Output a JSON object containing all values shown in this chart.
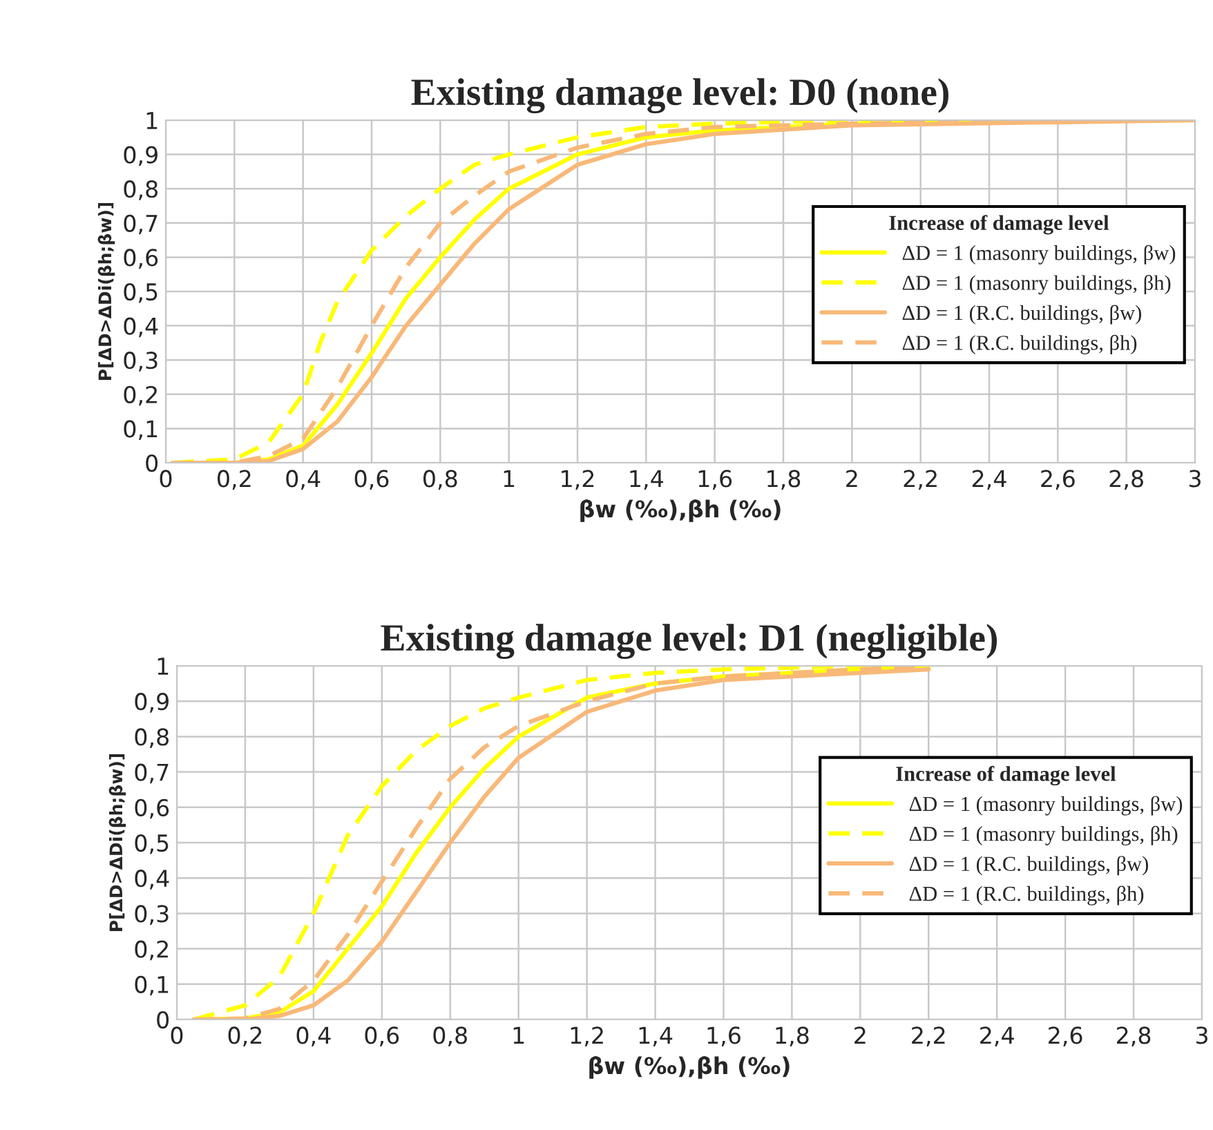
{
  "chart_data": [
    {
      "type": "line",
      "title": "Existing damage level: D0 (none)",
      "xlabel": "βw (‰),βh (‰)",
      "ylabel": "P[ΔD>ΔDi(βh;βw)]",
      "legend_title": "Increase of damage level",
      "legend": "right",
      "grid": true,
      "marker": "none",
      "xlim": [
        0,
        3
      ],
      "ylim": [
        0,
        1
      ],
      "xticks": [
        0,
        {
          "value": 0.2,
          "label": "0,2"
        },
        {
          "value": 0.4,
          "label": "0,4"
        },
        {
          "value": 0.6,
          "label": "0,6"
        },
        {
          "value": 0.8,
          "label": "0,8"
        },
        1,
        {
          "value": 1.2,
          "label": "1,2"
        },
        {
          "value": 1.4,
          "label": "1,4"
        },
        {
          "value": 1.6,
          "label": "1,6"
        },
        {
          "value": 1.8,
          "label": "1,8"
        },
        2,
        {
          "value": 2.2,
          "label": "2,2"
        },
        {
          "value": 2.4,
          "label": "2,4"
        },
        {
          "value": 2.6,
          "label": "2,6"
        },
        {
          "value": 2.8,
          "label": "2,8"
        },
        3
      ],
      "yticks": [
        0,
        {
          "value": 0.1,
          "label": "0,1"
        },
        {
          "value": 0.2,
          "label": "0,2"
        },
        {
          "value": 0.3,
          "label": "0,3"
        },
        {
          "value": 0.4,
          "label": "0,4"
        },
        {
          "value": 0.5,
          "label": "0,5"
        },
        {
          "value": 0.6,
          "label": "0,6"
        },
        {
          "value": 0.7,
          "label": "0,7"
        },
        {
          "value": 0.8,
          "label": "0,8"
        },
        {
          "value": 0.9,
          "label": "0,9"
        },
        1
      ],
      "series": [
        {
          "name": "ΔD = 1 (masonry buildings, βw)",
          "color": "#ffff00",
          "line_style": "solid",
          "x": [
            0.02,
            0.2,
            0.3,
            0.4,
            0.5,
            0.6,
            0.7,
            0.8,
            0.9,
            1.0,
            1.2,
            1.4,
            1.6,
            2.0,
            3.0
          ],
          "values": [
            0,
            0,
            0.01,
            0.05,
            0.17,
            0.32,
            0.48,
            0.6,
            0.71,
            0.8,
            0.9,
            0.95,
            0.97,
            0.99,
            1
          ]
        },
        {
          "name": "ΔD = 1 (masonry buildings, βh)",
          "color": "#ffff00",
          "line_style": "dashed",
          "x": [
            0.02,
            0.2,
            0.3,
            0.4,
            0.45,
            0.5,
            0.6,
            0.7,
            0.8,
            0.9,
            1.0,
            1.2,
            1.4,
            1.6,
            2.0,
            3.0
          ],
          "values": [
            0,
            0.01,
            0.06,
            0.2,
            0.35,
            0.47,
            0.62,
            0.72,
            0.8,
            0.87,
            0.9,
            0.95,
            0.98,
            0.99,
            1,
            1
          ]
        },
        {
          "name": "ΔD = 1 (R.C. buildings, βw)",
          "color": "#f8b878",
          "line_style": "solid",
          "x": [
            0.02,
            0.2,
            0.3,
            0.4,
            0.5,
            0.6,
            0.7,
            0.8,
            0.9,
            1.0,
            1.2,
            1.4,
            1.6,
            2.0,
            3.0
          ],
          "values": [
            0,
            0,
            0.005,
            0.04,
            0.12,
            0.25,
            0.4,
            0.52,
            0.64,
            0.74,
            0.87,
            0.93,
            0.96,
            0.985,
            1
          ]
        },
        {
          "name": "ΔD = 1 (R.C. buildings, βh)",
          "color": "#f8b878",
          "line_style": "dashed",
          "x": [
            0.02,
            0.2,
            0.3,
            0.4,
            0.5,
            0.6,
            0.7,
            0.8,
            0.9,
            1.0,
            1.2,
            1.4,
            1.6,
            2.0,
            3.0
          ],
          "values": [
            0,
            0,
            0.02,
            0.07,
            0.22,
            0.4,
            0.57,
            0.7,
            0.78,
            0.85,
            0.92,
            0.96,
            0.98,
            0.99,
            1
          ]
        }
      ]
    },
    {
      "type": "line",
      "title": "Existing damage level: D1 (negligible)",
      "xlabel": "βw (‰),βh (‰)",
      "ylabel": "P[ΔD>ΔDi(βh;βw)]",
      "legend_title": "Increase of damage level",
      "legend": "right",
      "grid": true,
      "marker": "none",
      "xlim": [
        0,
        3
      ],
      "ylim": [
        0,
        1
      ],
      "xticks": [
        0,
        {
          "value": 0.2,
          "label": "0,2"
        },
        {
          "value": 0.4,
          "label": "0,4"
        },
        {
          "value": 0.6,
          "label": "0,6"
        },
        {
          "value": 0.8,
          "label": "0,8"
        },
        1,
        {
          "value": 1.2,
          "label": "1,2"
        },
        {
          "value": 1.4,
          "label": "1,4"
        },
        {
          "value": 1.6,
          "label": "1,6"
        },
        {
          "value": 1.8,
          "label": "1,8"
        },
        2,
        {
          "value": 2.2,
          "label": "2,2"
        },
        {
          "value": 2.4,
          "label": "2,4"
        },
        {
          "value": 2.6,
          "label": "2,6"
        },
        {
          "value": 2.8,
          "label": "2,8"
        },
        3
      ],
      "yticks": [
        0,
        {
          "value": 0.1,
          "label": "0,1"
        },
        {
          "value": 0.2,
          "label": "0,2"
        },
        {
          "value": 0.3,
          "label": "0,3"
        },
        {
          "value": 0.4,
          "label": "0,4"
        },
        {
          "value": 0.5,
          "label": "0,5"
        },
        {
          "value": 0.6,
          "label": "0,6"
        },
        {
          "value": 0.7,
          "label": "0,7"
        },
        {
          "value": 0.8,
          "label": "0,8"
        },
        {
          "value": 0.9,
          "label": "0,9"
        },
        1
      ],
      "series": [
        {
          "name": "ΔD = 1 (masonry buildings, βw)",
          "color": "#ffff00",
          "line_style": "solid",
          "x": [
            0.05,
            0.2,
            0.3,
            0.4,
            0.5,
            0.6,
            0.7,
            0.8,
            0.9,
            1.0,
            1.2,
            1.4,
            1.6,
            2.0,
            2.2
          ],
          "values": [
            0,
            0.003,
            0.02,
            0.08,
            0.2,
            0.32,
            0.47,
            0.6,
            0.71,
            0.8,
            0.91,
            0.95,
            0.97,
            0.99,
            0.995
          ]
        },
        {
          "name": "ΔD = 1 (masonry buildings, βh)",
          "color": "#ffff00",
          "line_style": "dashed",
          "x": [
            0.05,
            0.2,
            0.3,
            0.4,
            0.5,
            0.6,
            0.7,
            0.8,
            0.9,
            1.0,
            1.2,
            1.4,
            1.6,
            2.0,
            2.2
          ],
          "values": [
            0,
            0.04,
            0.12,
            0.3,
            0.52,
            0.66,
            0.76,
            0.83,
            0.88,
            0.91,
            0.96,
            0.98,
            0.99,
            1,
            1
          ]
        },
        {
          "name": "ΔD = 1 (R.C. buildings, βw)",
          "color": "#f8b878",
          "line_style": "solid",
          "x": [
            0.05,
            0.2,
            0.3,
            0.4,
            0.5,
            0.6,
            0.7,
            0.8,
            0.9,
            1.0,
            1.2,
            1.4,
            1.6,
            2.0,
            2.2
          ],
          "values": [
            0,
            0,
            0.01,
            0.04,
            0.11,
            0.22,
            0.36,
            0.5,
            0.63,
            0.74,
            0.87,
            0.93,
            0.96,
            0.98,
            0.99
          ]
        },
        {
          "name": "ΔD = 1 (R.C. buildings, βh)",
          "color": "#f8b878",
          "line_style": "dashed",
          "x": [
            0.05,
            0.2,
            0.3,
            0.4,
            0.5,
            0.6,
            0.7,
            0.8,
            0.9,
            1.0,
            1.2,
            1.4,
            1.6,
            2.0,
            2.2
          ],
          "values": [
            0,
            0.003,
            0.03,
            0.11,
            0.24,
            0.39,
            0.54,
            0.68,
            0.77,
            0.83,
            0.9,
            0.95,
            0.97,
            0.99,
            1
          ]
        }
      ]
    }
  ]
}
